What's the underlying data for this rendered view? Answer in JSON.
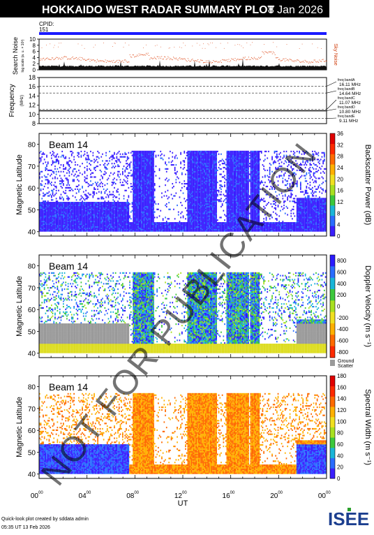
{
  "header": {
    "title": "HOKKAIDO WEST RADAR SUMMARY PLOT",
    "date": "8 Jan 2026",
    "cpid_label": "CPID:",
    "cpid_value": "151"
  },
  "noise_panel": {
    "ylabel": "Search Noise",
    "ylabel_sub": "log scale (a. u. × 10³)",
    "side_label": "Sky Noise",
    "ticks": [
      "0",
      "2",
      "4",
      "6",
      "8",
      "10"
    ]
  },
  "freq_panel": {
    "ylabel": "Frequency",
    "ylabel_sub": "(MHz)",
    "ticks": [
      "8",
      "10",
      "12",
      "14",
      "16",
      "18"
    ],
    "bands": [
      {
        "name": "freq bandA",
        "value": "16.11 MHz"
      },
      {
        "name": "freq bandB",
        "value": "14.64 MHz"
      },
      {
        "name": "freq bandC",
        "value": "11.07 MHz"
      },
      {
        "name": "freq bandD",
        "value": "10.80 MHz"
      },
      {
        "name": "freq bandE",
        "value": "9.11 MHz"
      }
    ]
  },
  "panels": [
    {
      "beam": "Beam 14",
      "ylabel": "Magnetic Latitude",
      "yticks": [
        "40",
        "50",
        "60",
        "70",
        "80"
      ],
      "colorbar_label": "Backscatter Power (dB)",
      "colorbar_ticks": [
        "0",
        "4",
        "8",
        "12",
        "16",
        "20",
        "24",
        "28",
        "32",
        "36"
      ],
      "colors": [
        "#3a1fff",
        "#2a6cff",
        "#19b5d8",
        "#3cc83c",
        "#a8e020",
        "#f0e020",
        "#ffb000",
        "#ff6a00",
        "#ff2a00",
        "#e00000"
      ]
    },
    {
      "beam": "Beam 14",
      "ylabel": "Magnetic Latitude",
      "yticks": [
        "40",
        "50",
        "60",
        "70",
        "80"
      ],
      "colorbar_label": "Doppler Velocity (m s⁻¹)",
      "colorbar_ticks": [
        "800",
        "600",
        "400",
        "200",
        "0",
        "-200",
        "-400",
        "-600",
        "-800"
      ],
      "ground_label": "Ground",
      "ground_label2": "Scatter",
      "colors": [
        "#2a1aff",
        "#2a6cff",
        "#19b5d8",
        "#3cc83c",
        "#a8e020",
        "#f0e020",
        "#ffb000",
        "#ff6a00",
        "#ff2a00"
      ]
    },
    {
      "beam": "Beam 14",
      "ylabel": "Magnetic Latitude",
      "yticks": [
        "40",
        "50",
        "60",
        "70",
        "80"
      ],
      "colorbar_label": "Spectral Width (m s⁻¹)",
      "colorbar_ticks": [
        "0",
        "20",
        "40",
        "60",
        "80",
        "100",
        "120",
        "140",
        "160",
        "180"
      ],
      "colors": [
        "#3a1fff",
        "#2a6cff",
        "#19b5d8",
        "#3cc83c",
        "#a8e020",
        "#f0e020",
        "#ffb000",
        "#ff6a00",
        "#ff2a00",
        "#e00000"
      ]
    }
  ],
  "xaxis": {
    "label": "UT",
    "ticks": [
      {
        "h": "00",
        "m": "00"
      },
      {
        "h": "04",
        "m": "00"
      },
      {
        "h": "08",
        "m": "00"
      },
      {
        "h": "12",
        "m": "00"
      },
      {
        "h": "16",
        "m": "00"
      },
      {
        "h": "20",
        "m": "00"
      },
      {
        "h": "00",
        "m": "00"
      }
    ]
  },
  "watermark": "NOT FOR PUBLICATION",
  "footer": {
    "line1": "Quick-look plot created by sddata admin",
    "line2": "05:35 UT 13 Feb 2026",
    "logo": "ISEE"
  },
  "chart_data": {
    "type": "heatmap",
    "title": "HOKKAIDO WEST RADAR SUMMARY PLOT",
    "date": "8 Jan 2026",
    "beam": 14,
    "xlabel": "UT",
    "x_range_hours": [
      0,
      24
    ],
    "ylabel": "Magnetic Latitude",
    "ylim": [
      38,
      85
    ],
    "frequencies_MHz": [
      16.11,
      14.64,
      11.07,
      10.8,
      9.11
    ],
    "noise_ylim": [
      0,
      10
    ],
    "freq_ylim": [
      8,
      18
    ],
    "parameters": [
      {
        "name": "Backscatter Power",
        "unit": "dB",
        "range": [
          0,
          36
        ]
      },
      {
        "name": "Doppler Velocity",
        "unit": "m s-1",
        "range": [
          -800,
          800
        ]
      },
      {
        "name": "Spectral Width",
        "unit": "m s-1",
        "range": [
          0,
          180
        ]
      }
    ]
  }
}
